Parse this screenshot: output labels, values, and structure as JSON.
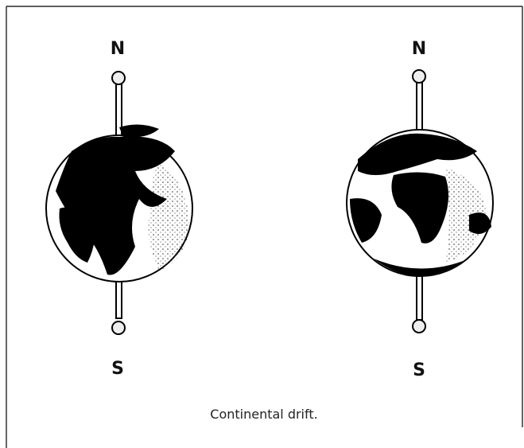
{
  "globes": [
    {
      "north": "N",
      "south": "S"
    },
    {
      "north": "N",
      "south": "S"
    }
  ],
  "caption": "Continental drift."
}
